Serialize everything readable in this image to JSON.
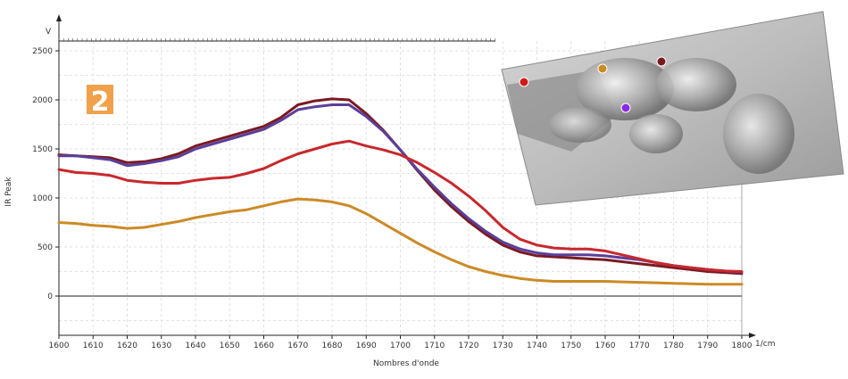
{
  "chart_data": {
    "type": "line",
    "title": "",
    "xlabel": "Nombres d'onde",
    "ylabel": "IR Peak",
    "x_unit": "1/cm",
    "y_unit": "V",
    "xlim": [
      1600,
      1800
    ],
    "ylim": [
      -400,
      2600
    ],
    "x_ticks": [
      1600,
      1610,
      1620,
      1630,
      1640,
      1650,
      1660,
      1670,
      1680,
      1690,
      1700,
      1710,
      1720,
      1730,
      1740,
      1750,
      1760,
      1770,
      1780,
      1790,
      1800
    ],
    "y_ticks": [
      0,
      500,
      1000,
      1500,
      2000,
      2500
    ],
    "grid": true,
    "legend": "none",
    "panel_label": "2",
    "series": [
      {
        "color": "#7a1a22",
        "x": [
          1600,
          1605,
          1610,
          1615,
          1620,
          1625,
          1630,
          1635,
          1640,
          1645,
          1650,
          1655,
          1660,
          1665,
          1670,
          1675,
          1680,
          1685,
          1690,
          1695,
          1700,
          1705,
          1710,
          1715,
          1720,
          1725,
          1730,
          1735,
          1740,
          1745,
          1750,
          1755,
          1760,
          1765,
          1770,
          1775,
          1780,
          1785,
          1790,
          1795,
          1800
        ],
        "y": [
          1440,
          1430,
          1420,
          1410,
          1360,
          1370,
          1400,
          1450,
          1530,
          1580,
          1630,
          1680,
          1730,
          1820,
          1950,
          1990,
          2010,
          2000,
          1860,
          1690,
          1490,
          1280,
          1080,
          910,
          760,
          630,
          520,
          450,
          410,
          400,
          390,
          380,
          370,
          350,
          330,
          310,
          290,
          270,
          250,
          240,
          230
        ]
      },
      {
        "color": "#5b3f9a",
        "x": [
          1600,
          1605,
          1610,
          1615,
          1620,
          1625,
          1630,
          1635,
          1640,
          1645,
          1650,
          1655,
          1660,
          1665,
          1670,
          1675,
          1680,
          1685,
          1690,
          1695,
          1700,
          1705,
          1710,
          1715,
          1720,
          1725,
          1730,
          1735,
          1740,
          1745,
          1750,
          1755,
          1760,
          1765,
          1770,
          1775,
          1780,
          1785,
          1790,
          1795,
          1800
        ],
        "y": [
          1430,
          1430,
          1410,
          1390,
          1330,
          1350,
          1380,
          1420,
          1500,
          1550,
          1600,
          1650,
          1700,
          1790,
          1900,
          1930,
          1950,
          1950,
          1830,
          1680,
          1490,
          1290,
          1110,
          940,
          790,
          660,
          550,
          480,
          440,
          420,
          420,
          420,
          410,
          390,
          370,
          340,
          310,
          290,
          270,
          255,
          245
        ]
      },
      {
        "color": "#c8282d",
        "x": [
          1600,
          1605,
          1610,
          1615,
          1620,
          1625,
          1630,
          1635,
          1640,
          1645,
          1650,
          1655,
          1660,
          1665,
          1670,
          1675,
          1680,
          1685,
          1690,
          1695,
          1700,
          1705,
          1710,
          1715,
          1720,
          1725,
          1730,
          1735,
          1740,
          1745,
          1750,
          1755,
          1760,
          1765,
          1770,
          1775,
          1780,
          1785,
          1790,
          1795,
          1800
        ],
        "y": [
          1290,
          1260,
          1250,
          1230,
          1180,
          1160,
          1150,
          1150,
          1180,
          1200,
          1210,
          1250,
          1300,
          1380,
          1450,
          1500,
          1550,
          1580,
          1530,
          1490,
          1440,
          1360,
          1260,
          1150,
          1020,
          870,
          700,
          580,
          520,
          490,
          480,
          480,
          460,
          420,
          380,
          340,
          310,
          290,
          270,
          255,
          250
        ]
      },
      {
        "color": "#cc8a26",
        "x": [
          1600,
          1605,
          1610,
          1615,
          1620,
          1625,
          1630,
          1635,
          1640,
          1645,
          1650,
          1655,
          1660,
          1665,
          1670,
          1675,
          1680,
          1685,
          1690,
          1695,
          1700,
          1705,
          1710,
          1715,
          1720,
          1725,
          1730,
          1735,
          1740,
          1745,
          1750,
          1755,
          1760,
          1765,
          1770,
          1775,
          1780,
          1785,
          1790,
          1795,
          1800
        ],
        "y": [
          750,
          740,
          720,
          710,
          690,
          700,
          730,
          760,
          800,
          830,
          860,
          880,
          920,
          960,
          990,
          980,
          960,
          920,
          840,
          740,
          640,
          540,
          450,
          370,
          300,
          250,
          210,
          180,
          160,
          150,
          150,
          150,
          150,
          145,
          140,
          135,
          130,
          125,
          120,
          120,
          120
        ]
      }
    ]
  },
  "inset": {
    "caption": "",
    "markers": [
      {
        "color": "#d01a1a"
      },
      {
        "color": "#cc8a26"
      },
      {
        "color": "#7a1a22"
      },
      {
        "color": "#8a2be2"
      }
    ]
  }
}
